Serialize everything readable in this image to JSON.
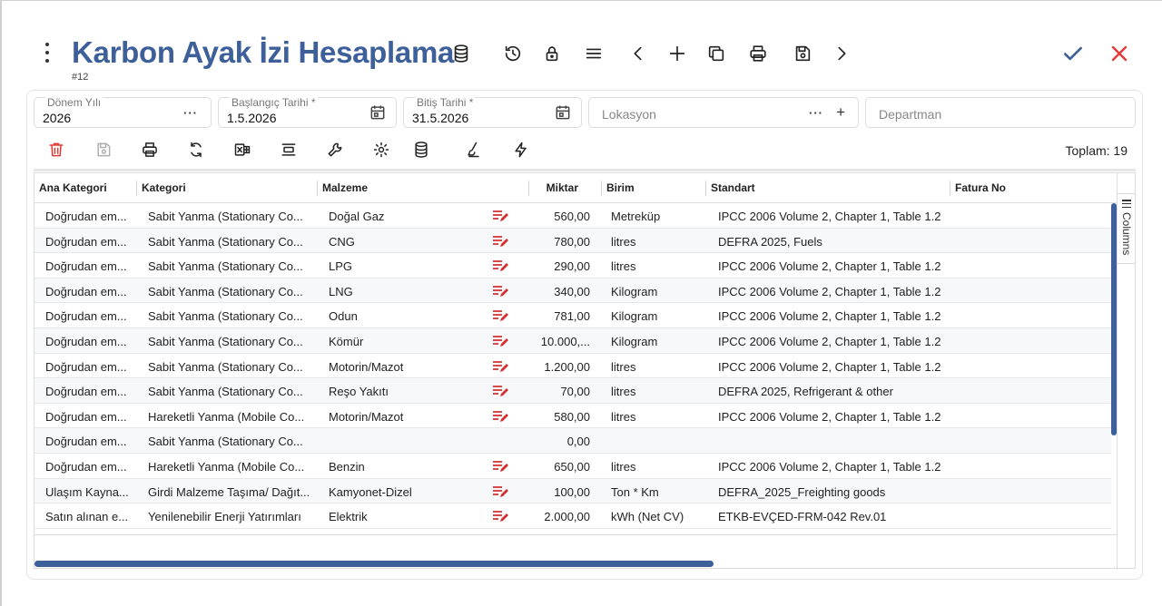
{
  "header": {
    "title": "Karbon Ayak İzi Hesaplama",
    "record_id": "#12"
  },
  "filters": {
    "period_year": {
      "label": "Dönem Yılı",
      "value": "2026",
      "more": "···"
    },
    "start_date": {
      "label": "Başlangıç Tarihi *",
      "value": "1.5.2026"
    },
    "end_date": {
      "label": "Bitiş Tarihi *",
      "value": "31.5.2026"
    },
    "location": {
      "placeholder": "Lokasyon",
      "more": "···",
      "add": "+"
    },
    "department": {
      "placeholder": "Departman"
    }
  },
  "toolbar": {
    "total_label": "Toplam: 19"
  },
  "grid": {
    "columns": [
      "Ana Kategori",
      "Kategori",
      "Malzeme",
      "Miktar",
      "Birim",
      "Standart",
      "Fatura No"
    ],
    "columns_panel_label": "Columns",
    "rows": [
      {
        "ana": "Doğrudan em...",
        "kat": "Sabit Yanma (Stationary Co...",
        "mal": "Doğal Gaz",
        "edit": true,
        "miktar": "560,00",
        "birim": "Metreküp",
        "std": "IPCC 2006 Volume 2, Chapter 1, Table 1.2",
        "fatura": ""
      },
      {
        "ana": "Doğrudan em...",
        "kat": "Sabit Yanma (Stationary Co...",
        "mal": "CNG",
        "edit": true,
        "miktar": "780,00",
        "birim": "litres",
        "std": "DEFRA 2025, Fuels",
        "fatura": ""
      },
      {
        "ana": "Doğrudan em...",
        "kat": "Sabit Yanma (Stationary Co...",
        "mal": "LPG",
        "edit": true,
        "miktar": "290,00",
        "birim": "litres",
        "std": "IPCC 2006 Volume 2, Chapter 1, Table 1.2",
        "fatura": ""
      },
      {
        "ana": "Doğrudan em...",
        "kat": "Sabit Yanma (Stationary Co...",
        "mal": "LNG",
        "edit": true,
        "miktar": "340,00",
        "birim": "Kilogram",
        "std": "IPCC 2006 Volume 2, Chapter 1, Table 1.2",
        "fatura": ""
      },
      {
        "ana": "Doğrudan em...",
        "kat": "Sabit Yanma (Stationary Co...",
        "mal": "Odun",
        "edit": true,
        "miktar": "781,00",
        "birim": "Kilogram",
        "std": "IPCC 2006 Volume 2, Chapter 1, Table 1.2",
        "fatura": ""
      },
      {
        "ana": "Doğrudan em...",
        "kat": "Sabit Yanma (Stationary Co...",
        "mal": "Kömür",
        "edit": true,
        "miktar": "10.000,...",
        "birim": "Kilogram",
        "std": "IPCC 2006 Volume 2, Chapter 1, Table 1.2",
        "fatura": ""
      },
      {
        "ana": "Doğrudan em...",
        "kat": "Sabit Yanma (Stationary Co...",
        "mal": "Motorin/Mazot",
        "edit": true,
        "miktar": "1.200,00",
        "birim": "litres",
        "std": "IPCC 2006 Volume 2, Chapter 1, Table 1.2",
        "fatura": ""
      },
      {
        "ana": "Doğrudan em...",
        "kat": "Sabit Yanma (Stationary Co...",
        "mal": "Reşo Yakıtı",
        "edit": true,
        "miktar": "70,00",
        "birim": "litres",
        "std": "DEFRA 2025, Refrigerant & other",
        "fatura": ""
      },
      {
        "ana": "Doğrudan em...",
        "kat": "Hareketli Yanma (Mobile Co...",
        "mal": "Motorin/Mazot",
        "edit": true,
        "miktar": "580,00",
        "birim": "litres",
        "std": "IPCC 2006 Volume 2, Chapter 1, Table 1.2",
        "fatura": ""
      },
      {
        "ana": "Doğrudan em...",
        "kat": "Sabit Yanma (Stationary Co...",
        "mal": "",
        "edit": false,
        "miktar": "0,00",
        "birim": "",
        "std": "",
        "fatura": ""
      },
      {
        "ana": "Doğrudan em...",
        "kat": "Hareketli Yanma (Mobile Co...",
        "mal": "Benzin",
        "edit": true,
        "miktar": "650,00",
        "birim": "litres",
        "std": "IPCC 2006 Volume 2, Chapter 1, Table 1.2",
        "fatura": ""
      },
      {
        "ana": "Ulaşım Kayna...",
        "kat": "Girdi Malzeme Taşıma/ Dağıt...",
        "mal": "Kamyonet-Dizel",
        "edit": true,
        "miktar": "100,00",
        "birim": "Ton * Km",
        "std": "DEFRA_2025_Freighting goods",
        "fatura": ""
      },
      {
        "ana": "Satın alınan e...",
        "kat": "Yenilenebilir Enerji Yatırımları",
        "mal": "Elektrik",
        "edit": true,
        "miktar": "2.000,00",
        "birim": "kWh (Net CV)",
        "std": "ETKB-EVÇED-FRM-042 Rev.01",
        "fatura": ""
      }
    ]
  },
  "colors": {
    "accent": "#3d5f9a",
    "danger": "#e53935",
    "edit_icon": "#d32f2f"
  }
}
